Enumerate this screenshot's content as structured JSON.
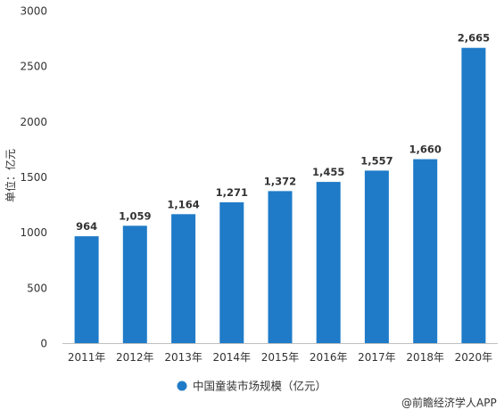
{
  "chart_data": {
    "type": "bar",
    "categories": [
      "2011年",
      "2012年",
      "2013年",
      "2014年",
      "2015年",
      "2016年",
      "2017年",
      "2018年",
      "2020年"
    ],
    "series": [
      {
        "name": "中国童装市场规模（亿元）",
        "values": [
          964,
          1059,
          1164,
          1271,
          1372,
          1455,
          1557,
          1660,
          2665
        ],
        "data_labels": [
          "964",
          "1,059",
          "1,164",
          "1,271",
          "1,372",
          "1,455",
          "1,557",
          "1,660",
          "2,665"
        ]
      }
    ],
    "ylabel": "单位：亿元",
    "ylim": [
      0,
      3000
    ],
    "yticks": [
      0,
      500,
      1000,
      1500,
      2000,
      2500,
      3000
    ],
    "grid": false,
    "legend_position": "bottom",
    "bar_color": "#1f7bc8"
  },
  "source": "@前瞻经济学人APP"
}
